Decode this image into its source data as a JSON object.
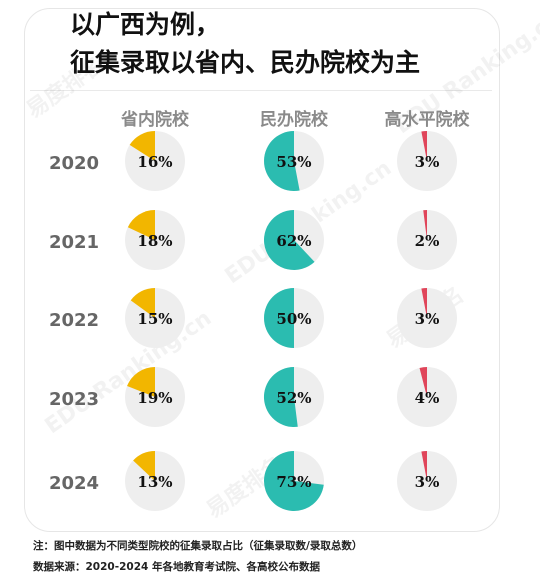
{
  "title_lines": [
    "以广西为例，",
    "征集录取以省内、民办院校为主"
  ],
  "chart_data": {
    "type": "pie",
    "columns": [
      "省内院校",
      "民办院校",
      "高水平院校"
    ],
    "years": [
      "2020",
      "2021",
      "2022",
      "2023",
      "2024"
    ],
    "series": [
      {
        "name": "省内院校",
        "color": "#f2b600",
        "values": [
          16,
          18,
          15,
          19,
          13
        ]
      },
      {
        "name": "民办院校",
        "color": "#2bbcb0",
        "values": [
          53,
          62,
          50,
          52,
          73
        ]
      },
      {
        "name": "高水平院校",
        "color": "#e0455a",
        "values": [
          3,
          2,
          3,
          4,
          3
        ]
      }
    ],
    "background_color": "#eeeeee",
    "value_suffix": "%"
  },
  "footer": {
    "note": "注：图中数据为不同类型院校的征集录取占比（征集录取数/录取总数）",
    "source": "数据来源：2020-2024 年各地教育考试院、各高校公布数据"
  },
  "watermark": {
    "brand": "易度排名",
    "text": "EDU Ranking.cn"
  }
}
